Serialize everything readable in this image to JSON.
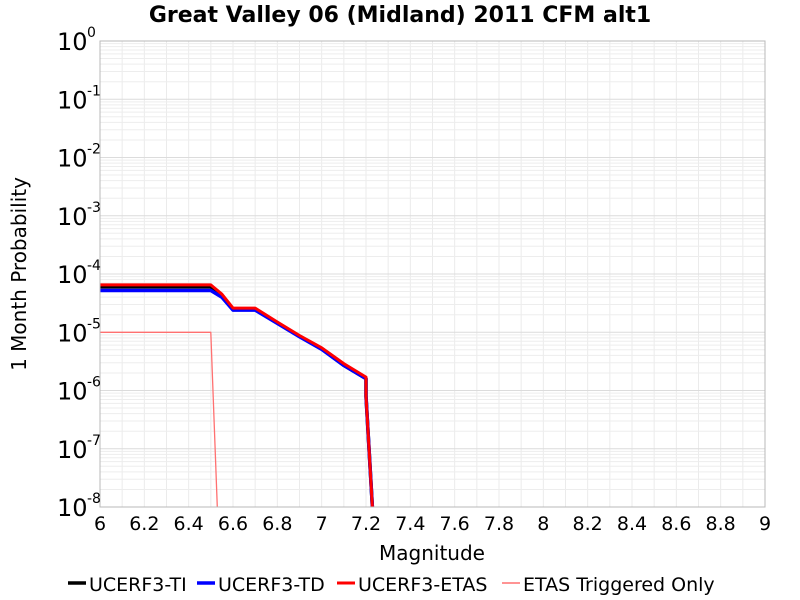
{
  "chart_data": {
    "type": "line",
    "title": "Great Valley 06 (Midland) 2011 CFM alt1",
    "xlabel": "Magnitude",
    "ylabel": "1 Month Probability",
    "xlim": [
      6,
      9
    ],
    "ylim": [
      1e-08,
      1
    ],
    "y_scale": "log",
    "x_ticks": [
      "6",
      "6.2",
      "6.4",
      "6.6",
      "6.8",
      "7",
      "7.2",
      "7.4",
      "7.6",
      "7.8",
      "8",
      "8.2",
      "8.4",
      "8.6",
      "8.8",
      "9"
    ],
    "y_ticks": [
      {
        "value": 1,
        "base": "10",
        "exp": "0"
      },
      {
        "value": 0.1,
        "base": "10",
        "exp": "-1"
      },
      {
        "value": 0.01,
        "base": "10",
        "exp": "-2"
      },
      {
        "value": 0.001,
        "base": "10",
        "exp": "-3"
      },
      {
        "value": 0.0001,
        "base": "10",
        "exp": "-4"
      },
      {
        "value": 1e-05,
        "base": "10",
        "exp": "-5"
      },
      {
        "value": 1e-06,
        "base": "10",
        "exp": "-6"
      },
      {
        "value": 1e-07,
        "base": "10",
        "exp": "-7"
      },
      {
        "value": 1e-08,
        "base": "10",
        "exp": "-8"
      }
    ],
    "grid": true,
    "legend_position": "bottom",
    "series": [
      {
        "name": "UCERF3-TI",
        "color": "#000000",
        "width": 3.5,
        "x": [
          6.0,
          6.5,
          6.55,
          6.6,
          6.7,
          6.8,
          6.9,
          7.0,
          7.1,
          7.2,
          7.2,
          7.23
        ],
        "y": [
          6e-05,
          6e-05,
          4.2e-05,
          2.5e-05,
          2.5e-05,
          1.45e-05,
          8.5e-06,
          5.2e-06,
          2.7e-06,
          1.6e-06,
          8e-07,
          8e-09
        ]
      },
      {
        "name": "UCERF3-TD",
        "color": "#0000ff",
        "width": 3.5,
        "x": [
          6.0,
          6.5,
          6.55,
          6.6,
          6.7,
          6.8,
          6.9,
          7.0,
          7.1,
          7.2,
          7.2,
          7.23
        ],
        "y": [
          5.2e-05,
          5.2e-05,
          4e-05,
          2.4e-05,
          2.4e-05,
          1.42e-05,
          8.4e-06,
          5.1e-06,
          2.7e-06,
          1.6e-06,
          8e-07,
          8e-09
        ]
      },
      {
        "name": "UCERF3-ETAS",
        "color": "#ff0000",
        "width": 3.0,
        "x": [
          6.0,
          6.5,
          6.55,
          6.6,
          6.7,
          6.8,
          6.9,
          7.0,
          7.1,
          7.2,
          7.2,
          7.23
        ],
        "y": [
          6.5e-05,
          6.5e-05,
          4.5e-05,
          2.6e-05,
          2.6e-05,
          1.5e-05,
          8.8e-06,
          5.4e-06,
          2.9e-06,
          1.7e-06,
          8e-07,
          8e-09
        ]
      },
      {
        "name": "ETAS Triggered Only",
        "color": "#ff7070",
        "width": 1.3,
        "x": [
          6.0,
          6.5,
          6.53
        ],
        "y": [
          1e-05,
          1e-05,
          8e-09
        ]
      }
    ]
  }
}
